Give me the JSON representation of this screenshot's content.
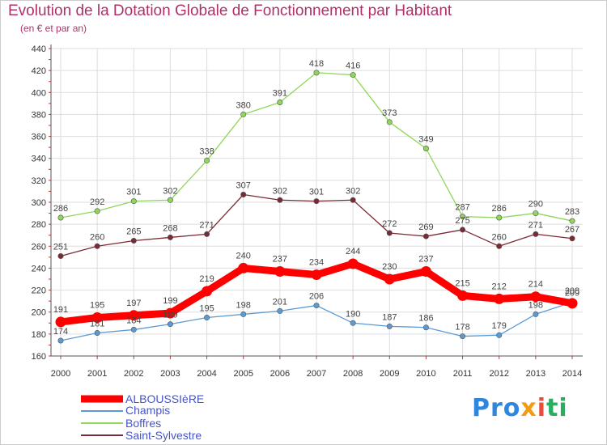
{
  "chart_data": {
    "type": "line",
    "title": "Evolution de la Dotation Globale de Fonctionnement par Habitant",
    "subtitle": "(en € et par an)",
    "xlabel": "",
    "ylabel": "",
    "x": [
      "2000",
      "2001",
      "2002",
      "2003",
      "2004",
      "2005",
      "2006",
      "2007",
      "2008",
      "2009",
      "2010",
      "2011",
      "2012",
      "2013",
      "2014"
    ],
    "ylim": [
      160,
      440
    ],
    "yticks": [
      160,
      180,
      200,
      220,
      240,
      260,
      280,
      300,
      320,
      340,
      360,
      380,
      400,
      420,
      440
    ],
    "grid": true,
    "series": [
      {
        "name": "ALBOUSSIèRE",
        "color": "#ff0000",
        "values": [
          191,
          195,
          197,
          199,
          219,
          240,
          237,
          234,
          244,
          230,
          237,
          215,
          212,
          214,
          208
        ]
      },
      {
        "name": "Champis",
        "color": "#5b9bd5",
        "values": [
          174,
          181,
          184,
          189,
          195,
          198,
          201,
          206,
          190,
          187,
          186,
          178,
          179,
          198,
          209
        ]
      },
      {
        "name": "Boffres",
        "color": "#8fd65a",
        "values": [
          286,
          292,
          301,
          302,
          338,
          380,
          391,
          418,
          416,
          373,
          349,
          287,
          286,
          290,
          283
        ]
      },
      {
        "name": "Saint-Sylvestre",
        "color": "#7a2a35",
        "values": [
          251,
          260,
          265,
          268,
          271,
          307,
          302,
          301,
          302,
          272,
          269,
          275,
          260,
          271,
          267
        ]
      }
    ]
  },
  "brand": {
    "p1": "Pro",
    "p2": "x",
    "p3": "i",
    "p4": "ti"
  }
}
